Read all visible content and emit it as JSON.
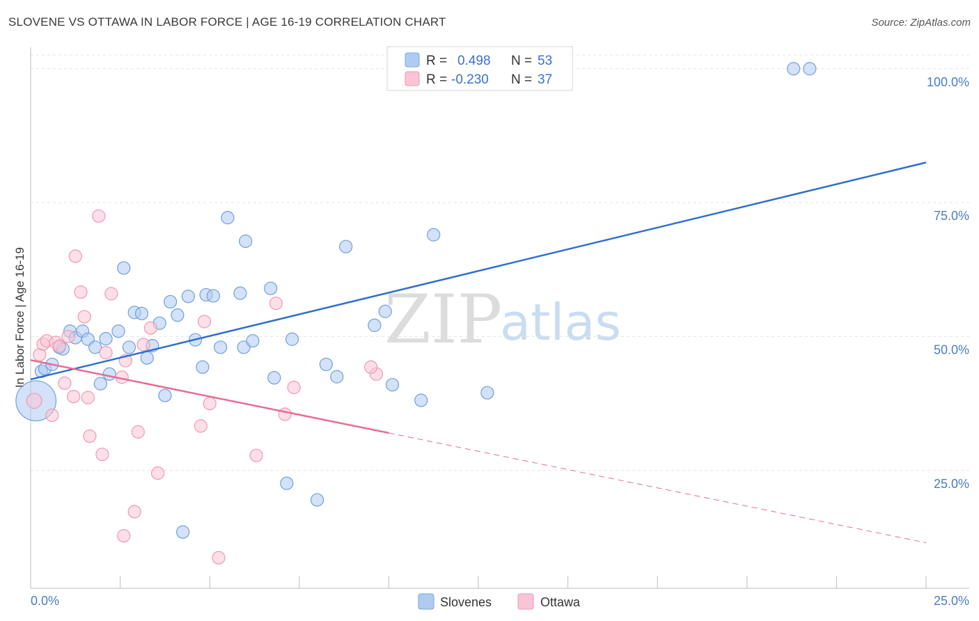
{
  "header": {
    "title": "SLOVENE VS OTTAWA IN LABOR FORCE | AGE 16-19 CORRELATION CHART",
    "source": "Source: ZipAtlas.com"
  },
  "watermark": {
    "zip": "ZIP",
    "atlas": "atlas"
  },
  "legend": {
    "r_label": "R =",
    "n_label": "N =",
    "series": [
      {
        "r": "0.498",
        "n": "53",
        "color": "#aecbf2",
        "stroke": "#7aa6e0"
      },
      {
        "r": "-0.230",
        "n": "37",
        "color": "#f9c5d4",
        "stroke": "#ee94b0"
      }
    ]
  },
  "chart_data": {
    "type": "scatter",
    "title": "SLOVENE VS OTTAWA IN LABOR FORCE | AGE 16-19 CORRELATION CHART",
    "xlabel": "",
    "ylabel": "In Labor Force | Age 16-19",
    "xlim": [
      0,
      25
    ],
    "ylim": [
      3,
      104
    ],
    "x_tick_labels": [
      "0.0%",
      "25.0%"
    ],
    "y_ticks": [
      25,
      50,
      75,
      100
    ],
    "y_tick_labels": [
      "25.0%",
      "50.0%",
      "75.0%",
      "100.0%"
    ],
    "legend_entries": [
      "Slovenes",
      "Ottawa"
    ],
    "series": [
      {
        "name": "Slovenes",
        "color": "#aecbf2",
        "stroke": "#6f9fdc",
        "line_color": "#2f6fce",
        "trend": {
          "x": [
            0,
            25
          ],
          "y": [
            42,
            82.5
          ]
        },
        "points": [
          [
            0.15,
            38,
            3.2
          ],
          [
            0.3,
            43.5,
            1
          ],
          [
            0.4,
            44,
            1
          ],
          [
            0.6,
            44.8,
            1
          ],
          [
            0.8,
            48,
            1
          ],
          [
            0.9,
            47.7,
            1
          ],
          [
            1.1,
            51,
            1
          ],
          [
            1.25,
            49.8,
            1
          ],
          [
            1.45,
            51,
            1
          ],
          [
            1.6,
            49.5,
            1
          ],
          [
            1.8,
            48,
            1
          ],
          [
            1.95,
            41.2,
            1
          ],
          [
            2.1,
            49.6,
            1
          ],
          [
            2.2,
            43,
            1
          ],
          [
            2.45,
            51,
            1
          ],
          [
            2.6,
            62.8,
            1
          ],
          [
            2.75,
            48,
            1
          ],
          [
            2.9,
            54.5,
            1
          ],
          [
            3.1,
            54.3,
            1
          ],
          [
            3.25,
            46,
            1
          ],
          [
            3.4,
            48.3,
            1
          ],
          [
            3.6,
            52.5,
            1
          ],
          [
            3.75,
            39,
            1
          ],
          [
            3.9,
            56.5,
            1
          ],
          [
            4.1,
            54,
            1
          ],
          [
            4.25,
            13.5,
            1
          ],
          [
            4.4,
            57.5,
            1
          ],
          [
            4.6,
            49.4,
            1
          ],
          [
            4.8,
            44.3,
            1
          ],
          [
            4.9,
            57.8,
            1
          ],
          [
            5.1,
            57.6,
            1
          ],
          [
            5.3,
            48,
            1
          ],
          [
            5.5,
            72.2,
            1
          ],
          [
            5.85,
            58.1,
            1
          ],
          [
            5.95,
            48,
            1
          ],
          [
            6.0,
            67.8,
            1
          ],
          [
            6.2,
            49.2,
            1
          ],
          [
            6.7,
            59,
            1
          ],
          [
            6.8,
            42.3,
            1
          ],
          [
            7.15,
            22.6,
            1
          ],
          [
            7.3,
            49.5,
            1
          ],
          [
            8.0,
            19.5,
            1
          ],
          [
            8.25,
            44.8,
            1
          ],
          [
            8.55,
            42.5,
            1
          ],
          [
            8.8,
            66.8,
            1
          ],
          [
            9.6,
            52.1,
            1
          ],
          [
            9.9,
            54.7,
            1
          ],
          [
            10.1,
            41,
            1
          ],
          [
            10.9,
            38.1,
            1
          ],
          [
            11.25,
            69,
            1
          ],
          [
            12.75,
            39.5,
            1
          ],
          [
            21.3,
            100,
            1
          ],
          [
            21.75,
            100,
            1
          ]
        ]
      },
      {
        "name": "Ottawa",
        "color": "#f9c5d4",
        "stroke": "#ef98b3",
        "line_color": "#e86a96",
        "trend": {
          "x": [
            0,
            10
          ],
          "y": [
            45.6,
            32
          ]
        },
        "trend_dashed": {
          "x": [
            10,
            25
          ],
          "y": [
            32,
            11.5
          ]
        },
        "points": [
          [
            0.1,
            38,
            1.2
          ],
          [
            0.25,
            46.6,
            1
          ],
          [
            0.35,
            48.6,
            1
          ],
          [
            0.45,
            49.2,
            1
          ],
          [
            0.6,
            35.3,
            1
          ],
          [
            0.7,
            48.9,
            1
          ],
          [
            0.8,
            48.2,
            1
          ],
          [
            0.95,
            41.3,
            1
          ],
          [
            1.05,
            50,
            1
          ],
          [
            1.2,
            38.8,
            1
          ],
          [
            1.25,
            65,
            1
          ],
          [
            1.4,
            58.3,
            1
          ],
          [
            1.5,
            53.7,
            1
          ],
          [
            1.6,
            38.6,
            1
          ],
          [
            1.65,
            31.4,
            1
          ],
          [
            1.9,
            72.5,
            1
          ],
          [
            2.0,
            28,
            1
          ],
          [
            2.1,
            47,
            1
          ],
          [
            2.25,
            58,
            1
          ],
          [
            2.55,
            42.4,
            1
          ],
          [
            2.6,
            12.8,
            1
          ],
          [
            2.65,
            45.5,
            1
          ],
          [
            2.9,
            17.3,
            1
          ],
          [
            3.0,
            32.2,
            1
          ],
          [
            3.15,
            48.5,
            1
          ],
          [
            3.35,
            51.6,
            1
          ],
          [
            3.55,
            24.5,
            1
          ],
          [
            4.75,
            33.3,
            1
          ],
          [
            4.85,
            52.8,
            1
          ],
          [
            5.0,
            37.5,
            1
          ],
          [
            5.25,
            8.7,
            1
          ],
          [
            6.3,
            27.8,
            1
          ],
          [
            6.85,
            56.2,
            1
          ],
          [
            7.1,
            35.5,
            1
          ],
          [
            7.35,
            40.5,
            1
          ],
          [
            9.65,
            43,
            1
          ],
          [
            9.5,
            44.3,
            1
          ]
        ]
      }
    ]
  }
}
